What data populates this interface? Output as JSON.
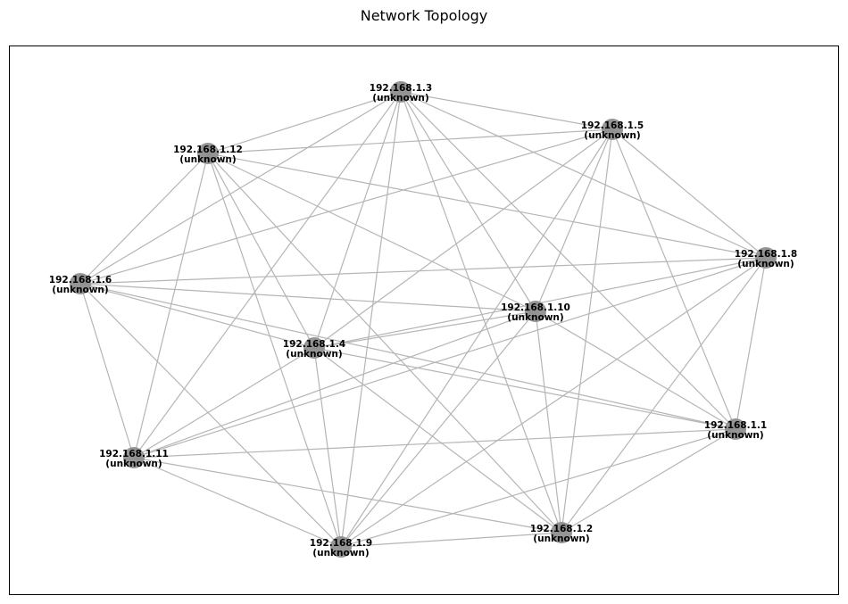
{
  "title": "Network Topology",
  "node_color": "#8f8f8f",
  "edge_color": "#b5b5b5",
  "nodes": [
    {
      "id": "192.168.1.3",
      "type": "(unknown)"
    },
    {
      "id": "192.168.1.5",
      "type": "(unknown)"
    },
    {
      "id": "192.168.1.12",
      "type": "(unknown)"
    },
    {
      "id": "192.168.1.8",
      "type": "(unknown)"
    },
    {
      "id": "192.168.1.6",
      "type": "(unknown)"
    },
    {
      "id": "192.168.1.10",
      "type": "(unknown)"
    },
    {
      "id": "192.168.1.4",
      "type": "(unknown)"
    },
    {
      "id": "192.168.1.1",
      "type": "(unknown)"
    },
    {
      "id": "192.168.1.11",
      "type": "(unknown)"
    },
    {
      "id": "192.168.1.2",
      "type": "(unknown)"
    },
    {
      "id": "192.168.1.9",
      "type": "(unknown)"
    }
  ],
  "edges": [
    [
      "192.168.1.3",
      "192.168.1.5"
    ],
    [
      "192.168.1.3",
      "192.168.1.12"
    ],
    [
      "192.168.1.3",
      "192.168.1.8"
    ],
    [
      "192.168.1.3",
      "192.168.1.6"
    ],
    [
      "192.168.1.3",
      "192.168.1.10"
    ],
    [
      "192.168.1.3",
      "192.168.1.4"
    ],
    [
      "192.168.1.3",
      "192.168.1.1"
    ],
    [
      "192.168.1.3",
      "192.168.1.11"
    ],
    [
      "192.168.1.3",
      "192.168.1.2"
    ],
    [
      "192.168.1.3",
      "192.168.1.9"
    ],
    [
      "192.168.1.5",
      "192.168.1.12"
    ],
    [
      "192.168.1.5",
      "192.168.1.8"
    ],
    [
      "192.168.1.5",
      "192.168.1.6"
    ],
    [
      "192.168.1.5",
      "192.168.1.10"
    ],
    [
      "192.168.1.5",
      "192.168.1.4"
    ],
    [
      "192.168.1.5",
      "192.168.1.1"
    ],
    [
      "192.168.1.5",
      "192.168.1.2"
    ],
    [
      "192.168.1.5",
      "192.168.1.9"
    ],
    [
      "192.168.1.12",
      "192.168.1.8"
    ],
    [
      "192.168.1.12",
      "192.168.1.6"
    ],
    [
      "192.168.1.12",
      "192.168.1.10"
    ],
    [
      "192.168.1.12",
      "192.168.1.4"
    ],
    [
      "192.168.1.12",
      "192.168.1.11"
    ],
    [
      "192.168.1.12",
      "192.168.1.2"
    ],
    [
      "192.168.1.12",
      "192.168.1.9"
    ],
    [
      "192.168.1.8",
      "192.168.1.6"
    ],
    [
      "192.168.1.8",
      "192.168.1.4"
    ],
    [
      "192.168.1.8",
      "192.168.1.1"
    ],
    [
      "192.168.1.8",
      "192.168.1.11"
    ],
    [
      "192.168.1.8",
      "192.168.1.2"
    ],
    [
      "192.168.1.8",
      "192.168.1.9"
    ],
    [
      "192.168.1.6",
      "192.168.1.10"
    ],
    [
      "192.168.1.6",
      "192.168.1.4"
    ],
    [
      "192.168.1.6",
      "192.168.1.1"
    ],
    [
      "192.168.1.6",
      "192.168.1.11"
    ],
    [
      "192.168.1.6",
      "192.168.1.9"
    ],
    [
      "192.168.1.10",
      "192.168.1.4"
    ],
    [
      "192.168.1.10",
      "192.168.1.1"
    ],
    [
      "192.168.1.10",
      "192.168.1.11"
    ],
    [
      "192.168.1.10",
      "192.168.1.2"
    ],
    [
      "192.168.1.10",
      "192.168.1.9"
    ],
    [
      "192.168.1.4",
      "192.168.1.1"
    ],
    [
      "192.168.1.4",
      "192.168.1.11"
    ],
    [
      "192.168.1.4",
      "192.168.1.2"
    ],
    [
      "192.168.1.4",
      "192.168.1.9"
    ],
    [
      "192.168.1.1",
      "192.168.1.11"
    ],
    [
      "192.168.1.1",
      "192.168.1.2"
    ],
    [
      "192.168.1.1",
      "192.168.1.9"
    ],
    [
      "192.168.1.11",
      "192.168.1.2"
    ],
    [
      "192.168.1.11",
      "192.168.1.9"
    ],
    [
      "192.168.1.2",
      "192.168.1.9"
    ]
  ]
}
